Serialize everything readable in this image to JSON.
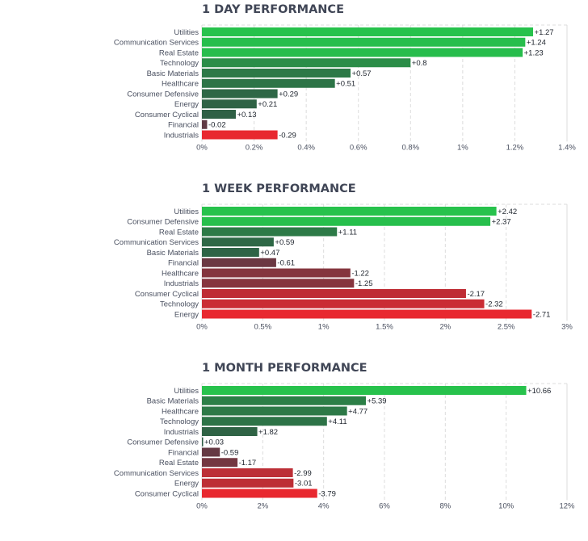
{
  "colors": {
    "pos_strong": "#27c24c",
    "pos_weak": "#2f5d45",
    "neg_weak": "#5e3a44",
    "neg_strong": "#e8282f",
    "grid": "#dcdcdc",
    "label": "#4a5060"
  },
  "chart_data": [
    {
      "type": "bar",
      "orientation": "horizontal",
      "title": "1 DAY PERFORMANCE",
      "categories": [
        "Utilities",
        "Communication Services",
        "Real Estate",
        "Technology",
        "Basic Materials",
        "Healthcare",
        "Consumer Defensive",
        "Energy",
        "Consumer Cyclical",
        "Financial",
        "Industrials"
      ],
      "values": [
        1.27,
        1.24,
        1.23,
        0.8,
        0.57,
        0.51,
        0.29,
        0.21,
        0.13,
        -0.02,
        -0.29
      ],
      "value_labels": [
        "+1.27",
        "+1.24",
        "+1.23",
        "+0.8",
        "+0.57",
        "+0.51",
        "+0.29",
        "+0.21",
        "+0.13",
        "-0.02",
        "-0.29"
      ],
      "xticks": [
        "0%",
        "0.2%",
        "0.4%",
        "0.6%",
        "0.8%",
        "1%",
        "1.2%",
        "1.4%"
      ],
      "xlim": [
        0,
        1.4
      ],
      "xlabel": "",
      "ylabel": ""
    },
    {
      "type": "bar",
      "orientation": "horizontal",
      "title": "1 WEEK PERFORMANCE",
      "categories": [
        "Utilities",
        "Consumer Defensive",
        "Real Estate",
        "Communication Services",
        "Basic Materials",
        "Financial",
        "Healthcare",
        "Industrials",
        "Consumer Cyclical",
        "Technology",
        "Energy"
      ],
      "values": [
        2.42,
        2.37,
        1.11,
        0.59,
        0.47,
        -0.61,
        -1.22,
        -1.25,
        -2.17,
        -2.32,
        -2.71
      ],
      "value_labels": [
        "+2.42",
        "+2.37",
        "+1.11",
        "+0.59",
        "+0.47",
        "-0.61",
        "-1.22",
        "-1.25",
        "-2.17",
        "-2.32",
        "-2.71"
      ],
      "xticks": [
        "0%",
        "0.5%",
        "1%",
        "1.5%",
        "2%",
        "2.5%",
        "3%"
      ],
      "xlim": [
        0,
        3
      ],
      "xlabel": "",
      "ylabel": ""
    },
    {
      "type": "bar",
      "orientation": "horizontal",
      "title": "1 MONTH PERFORMANCE",
      "categories": [
        "Utilities",
        "Basic Materials",
        "Healthcare",
        "Technology",
        "Industrials",
        "Consumer Defensive",
        "Financial",
        "Real Estate",
        "Communication Services",
        "Energy",
        "Consumer Cyclical"
      ],
      "values": [
        10.66,
        5.39,
        4.77,
        4.11,
        1.82,
        0.03,
        -0.59,
        -1.17,
        -2.99,
        -3.01,
        -3.79
      ],
      "value_labels": [
        "+10.66",
        "+5.39",
        "+4.77",
        "+4.11",
        "+1.82",
        "+0.03",
        "-0.59",
        "-1.17",
        "-2.99",
        "-3.01",
        "-3.79"
      ],
      "xticks": [
        "0%",
        "2%",
        "4%",
        "6%",
        "8%",
        "10%",
        "12%"
      ],
      "xlim": [
        0,
        12
      ],
      "xlabel": "",
      "ylabel": ""
    }
  ]
}
